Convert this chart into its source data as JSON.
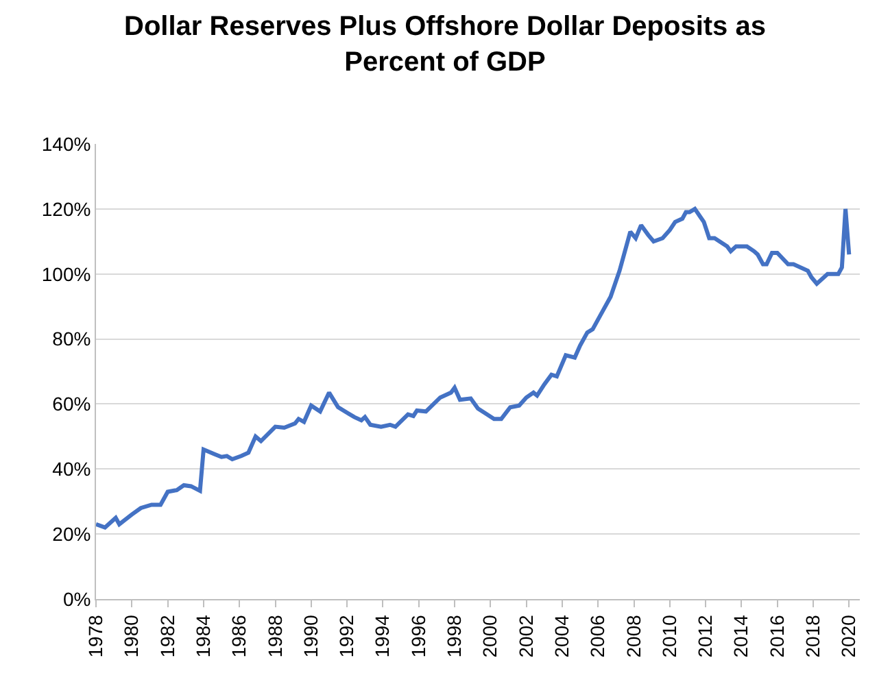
{
  "chart_data": {
    "type": "line",
    "title": "Dollar Reserves Plus Offshore Dollar Deposits as Percent of GDP",
    "xlim": [
      1978,
      2020.6
    ],
    "xticks": [
      1978,
      1980,
      1982,
      1984,
      1986,
      1988,
      1990,
      1992,
      1994,
      1996,
      1998,
      2000,
      2002,
      2004,
      2006,
      2008,
      2010,
      2012,
      2014,
      2016,
      2018,
      2020
    ],
    "ylim": [
      0,
      140
    ],
    "yticks": [
      {
        "value": 0,
        "label": "0%"
      },
      {
        "value": 20,
        "label": "20%"
      },
      {
        "value": 40,
        "label": "40%"
      },
      {
        "value": 60,
        "label": "60%"
      },
      {
        "value": 80,
        "label": "80%"
      },
      {
        "value": 100,
        "label": "100%"
      },
      {
        "value": 120,
        "label": "120%"
      },
      {
        "value": 140,
        "label": "140%"
      }
    ],
    "grid": "y",
    "marker": "none",
    "line_style": "solid",
    "series": [
      {
        "color": "#4472c4",
        "x": [
          1978.0,
          1978.5,
          1978.9,
          1979.1,
          1979.3,
          1980.0,
          1980.5,
          1981.1,
          1981.6,
          1982.0,
          1982.5,
          1982.9,
          1983.3,
          1983.8,
          1984.0,
          1984.6,
          1985.0,
          1985.3,
          1985.6,
          1986.1,
          1986.5,
          1986.9,
          1987.2,
          1988.0,
          1988.5,
          1989.1,
          1989.3,
          1989.6,
          1990.0,
          1990.5,
          1991.0,
          1991.5,
          1992.4,
          1992.8,
          1993.0,
          1993.3,
          1993.9,
          1994.4,
          1994.7,
          1995.4,
          1995.7,
          1995.9,
          1996.4,
          1997.2,
          1997.8,
          1998.0,
          1998.3,
          1998.9,
          1999.3,
          1999.7,
          2000.2,
          2000.6,
          2001.1,
          2001.6,
          2002.0,
          2002.4,
          2002.6,
          2003.0,
          2003.4,
          2003.7,
          2004.2,
          2004.7,
          2005.0,
          2005.4,
          2005.7,
          2006.2,
          2006.7,
          2007.2,
          2007.8,
          2008.1,
          2008.4,
          2008.8,
          2009.1,
          2009.6,
          2010.0,
          2010.3,
          2010.7,
          2010.9,
          2011.1,
          2011.4,
          2011.9,
          2012.2,
          2012.5,
          2013.2,
          2013.4,
          2013.7,
          2014.1,
          2014.3,
          2014.7,
          2014.9,
          2015.2,
          2015.4,
          2015.7,
          2016.0,
          2016.6,
          2016.9,
          2017.7,
          2017.9,
          2018.2,
          2018.8,
          2019.4,
          2019.6,
          2019.8,
          2020.0
        ],
        "values": [
          23,
          22,
          24,
          25,
          23,
          26,
          28,
          29,
          29,
          33,
          33.5,
          35,
          34.7,
          33.3,
          46,
          44.6,
          43.7,
          44,
          43,
          44,
          45,
          50,
          48.6,
          53,
          52.7,
          54,
          55.4,
          54.5,
          59.5,
          57.7,
          63.5,
          59,
          56,
          55,
          56,
          53.6,
          53,
          53.6,
          53,
          56.8,
          56.3,
          58,
          57.7,
          62,
          63.5,
          65,
          61.3,
          61.7,
          58.6,
          57.2,
          55.4,
          55.4,
          59,
          59.5,
          62,
          63.5,
          62.6,
          66,
          69,
          68.5,
          75,
          74.3,
          78,
          82,
          83,
          88,
          93,
          101,
          113,
          111,
          115,
          112,
          110,
          111,
          113.5,
          116,
          117,
          119,
          119,
          120,
          116,
          111,
          111,
          108.5,
          107,
          108.5,
          108.5,
          108.5,
          107,
          106,
          103,
          103,
          106.5,
          106.5,
          103,
          103,
          101,
          99,
          97,
          100,
          100,
          102,
          120,
          106
        ]
      }
    ]
  }
}
